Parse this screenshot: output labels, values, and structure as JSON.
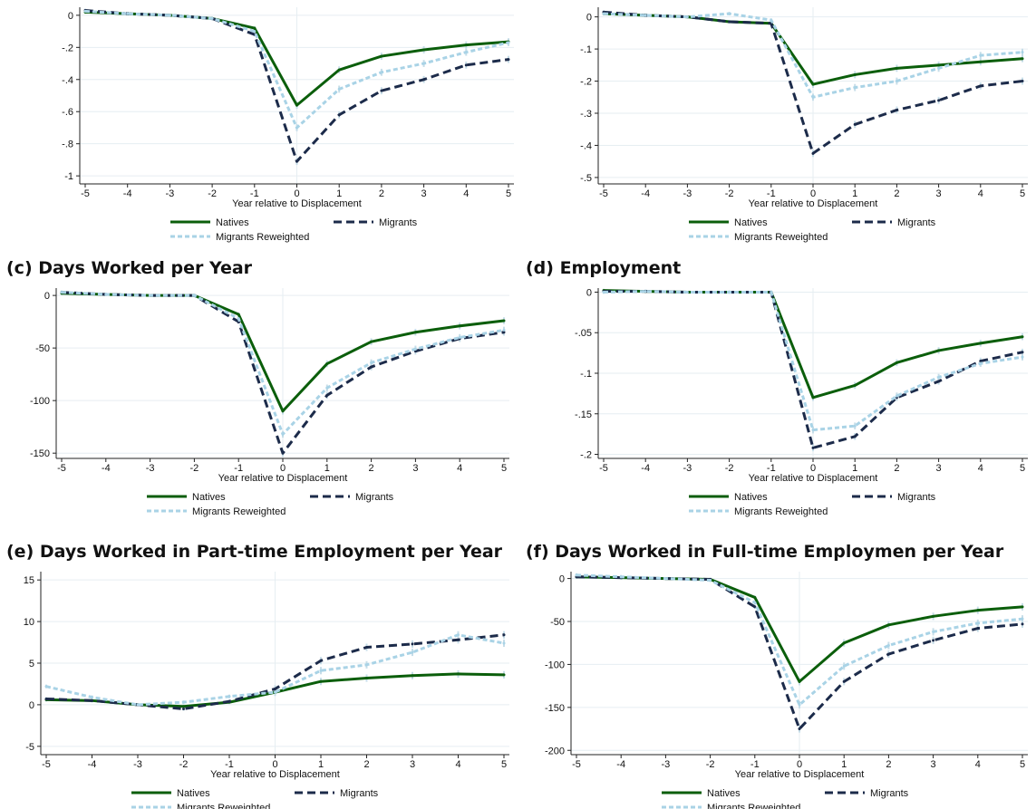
{
  "colors": {
    "natives": "#0b5e0b",
    "migrants": "#1c2b4a",
    "reweighted": "#a9d3e6",
    "ci": "#c6dde8",
    "grid": "#e6eef2"
  },
  "legend": {
    "natives": "Natives",
    "migrants": "Migrants",
    "reweighted": "Migrants Reweighted"
  },
  "chart_data": [
    {
      "id": "a",
      "type": "line",
      "title": "",
      "xlabel": "Year relative to Displacement",
      "x": [
        -5,
        -4,
        -3,
        -2,
        -1,
        0,
        1,
        2,
        3,
        4,
        5
      ],
      "ylim": [
        -1.05,
        0.05
      ],
      "yticks": [
        0,
        -0.2,
        -0.4,
        -0.6,
        -0.8,
        -1
      ],
      "ytick_labels": [
        "0",
        "-.2",
        "-.4",
        "-.6",
        "-.8",
        "-1"
      ],
      "series": [
        {
          "name": "Natives",
          "values": [
            0.02,
            0.01,
            0,
            -0.02,
            -0.08,
            -0.56,
            -0.34,
            -0.255,
            -0.215,
            -0.185,
            -0.165
          ]
        },
        {
          "name": "Migrants",
          "values": [
            0.03,
            0.01,
            0,
            -0.02,
            -0.12,
            -0.91,
            -0.62,
            -0.47,
            -0.4,
            -0.31,
            -0.275
          ]
        },
        {
          "name": "Migrants Reweighted",
          "values": [
            0.025,
            0.01,
            0,
            -0.02,
            -0.1,
            -0.7,
            -0.46,
            -0.355,
            -0.3,
            -0.23,
            -0.17
          ]
        }
      ]
    },
    {
      "id": "b",
      "type": "line",
      "title": "",
      "xlabel": "Year relative to Displacement",
      "x": [
        -5,
        -4,
        -3,
        -2,
        -1,
        0,
        1,
        2,
        3,
        4,
        5
      ],
      "ylim": [
        -0.52,
        0.03
      ],
      "yticks": [
        0,
        -0.1,
        -0.2,
        -0.3,
        -0.4,
        -0.5
      ],
      "ytick_labels": [
        "0",
        "-.1",
        "-.2",
        "-.3",
        "-.4",
        "-.5"
      ],
      "series": [
        {
          "name": "Natives",
          "values": [
            0.01,
            0.005,
            0,
            -0.015,
            -0.02,
            -0.21,
            -0.18,
            -0.16,
            -0.15,
            -0.14,
            -0.13
          ]
        },
        {
          "name": "Migrants",
          "values": [
            0.015,
            0.005,
            0,
            -0.015,
            -0.02,
            -0.425,
            -0.335,
            -0.29,
            -0.26,
            -0.215,
            -0.2
          ]
        },
        {
          "name": "Migrants Reweighted",
          "values": [
            0.01,
            0.005,
            0,
            0.01,
            -0.01,
            -0.25,
            -0.22,
            -0.2,
            -0.16,
            -0.12,
            -0.11
          ]
        }
      ]
    },
    {
      "id": "c",
      "type": "line",
      "title": "(c) Days Worked per Year",
      "xlabel": "Year relative to Displacement",
      "x": [
        -5,
        -4,
        -3,
        -2,
        -1,
        0,
        1,
        2,
        3,
        4,
        5
      ],
      "ylim": [
        -155,
        7
      ],
      "yticks": [
        0,
        -50,
        -100,
        -150
      ],
      "ytick_labels": [
        "0",
        "-50",
        "-100",
        "-150"
      ],
      "series": [
        {
          "name": "Natives",
          "values": [
            2,
            1,
            0,
            0,
            -18,
            -110,
            -65,
            -44,
            -35,
            -29,
            -24
          ]
        },
        {
          "name": "Migrants",
          "values": [
            3,
            1,
            0,
            0,
            -25,
            -150,
            -95,
            -68,
            -53,
            -41,
            -35
          ]
        },
        {
          "name": "Migrants Reweighted",
          "values": [
            3,
            1,
            0,
            0,
            -22,
            -132,
            -88,
            -64,
            -51,
            -40,
            -33
          ]
        }
      ]
    },
    {
      "id": "d",
      "type": "line",
      "title": "(d) Employment",
      "xlabel": "Year relative to Displacement",
      "x": [
        -5,
        -4,
        -3,
        -2,
        -1,
        0,
        1,
        2,
        3,
        4,
        5
      ],
      "ylim": [
        -0.205,
        0.005
      ],
      "yticks": [
        0,
        -0.05,
        -0.1,
        -0.15,
        -0.2
      ],
      "ytick_labels": [
        "0",
        "-.05",
        "-.1",
        "-.15",
        "-.2"
      ],
      "series": [
        {
          "name": "Natives",
          "values": [
            0.002,
            0.001,
            0,
            0,
            0,
            -0.13,
            -0.115,
            -0.087,
            -0.072,
            -0.063,
            -0.055
          ]
        },
        {
          "name": "Migrants",
          "values": [
            0.001,
            0.001,
            0,
            0,
            0,
            -0.192,
            -0.178,
            -0.13,
            -0.11,
            -0.085,
            -0.074
          ]
        },
        {
          "name": "Migrants Reweighted",
          "values": [
            0,
            0.001,
            0,
            0,
            0,
            -0.17,
            -0.165,
            -0.128,
            -0.105,
            -0.088,
            -0.08
          ]
        }
      ]
    },
    {
      "id": "e",
      "type": "line",
      "title": "(e) Days Worked in Part-time Employment per Year",
      "xlabel": "Year relative to Displacement",
      "x": [
        -5,
        -4,
        -3,
        -2,
        -1,
        0,
        1,
        2,
        3,
        4,
        5
      ],
      "ylim": [
        -6,
        16
      ],
      "yticks": [
        15,
        10,
        5,
        0,
        -5
      ],
      "ytick_labels": [
        "15",
        "10",
        "5",
        "0",
        "-5"
      ],
      "series": [
        {
          "name": "Natives",
          "values": [
            0.6,
            0.5,
            0,
            -0.2,
            0.3,
            1.5,
            2.8,
            3.2,
            3.5,
            3.7,
            3.6
          ]
        },
        {
          "name": "Migrants",
          "values": [
            0.7,
            0.5,
            0,
            -0.5,
            0.4,
            1.9,
            5.3,
            6.9,
            7.3,
            7.8,
            8.4
          ]
        },
        {
          "name": "Migrants Reweighted",
          "values": [
            2.2,
            0.9,
            0,
            0.3,
            1,
            1.5,
            4.1,
            4.8,
            6.3,
            8.4,
            7.4
          ]
        }
      ]
    },
    {
      "id": "f",
      "type": "line",
      "title": "(f) Days Worked in Full-time Employmen per Year",
      "xlabel": "Year relative to Displacement",
      "x": [
        -5,
        -4,
        -3,
        -2,
        -1,
        0,
        1,
        2,
        3,
        4,
        5
      ],
      "ylim": [
        -205,
        8
      ],
      "yticks": [
        0,
        -50,
        -100,
        -150,
        -200
      ],
      "ytick_labels": [
        "0",
        "-50",
        "-100",
        "-150",
        "-200"
      ],
      "series": [
        {
          "name": "Natives",
          "values": [
            2,
            1,
            0,
            -1,
            -22,
            -120,
            -75,
            -54,
            -44,
            -37,
            -33
          ]
        },
        {
          "name": "Migrants",
          "values": [
            2,
            1,
            0,
            -1,
            -33,
            -175,
            -120,
            -88,
            -72,
            -58,
            -53
          ]
        },
        {
          "name": "Migrants Reweighted",
          "values": [
            4,
            2,
            0,
            -2,
            -28,
            -147,
            -102,
            -78,
            -62,
            -52,
            -47
          ]
        }
      ]
    }
  ]
}
